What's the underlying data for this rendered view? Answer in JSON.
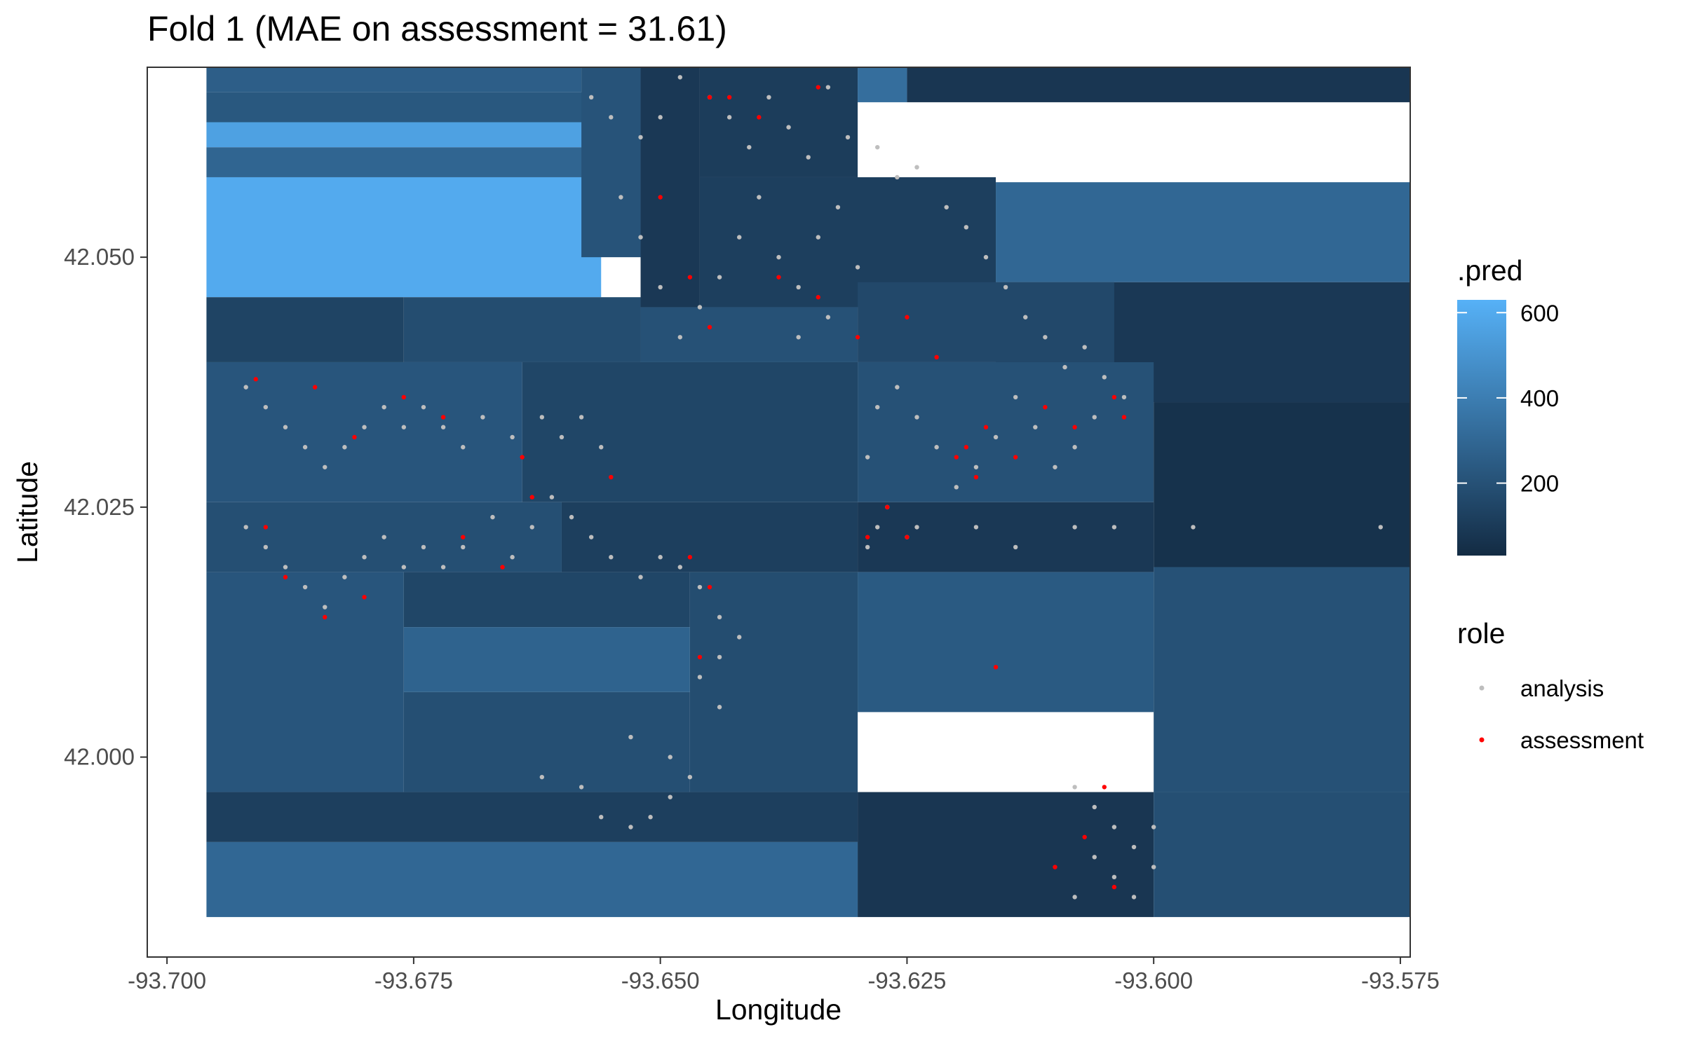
{
  "chart_data": {
    "type": "heatmap",
    "title": "Fold 1 (MAE on assessment = 31.61)",
    "xlabel": "Longitude",
    "ylabel": "Latitude",
    "xlim": [
      -93.702,
      -93.574
    ],
    "ylim": [
      41.98,
      42.069
    ],
    "x_ticks": [
      -93.7,
      -93.675,
      -93.65,
      -93.625,
      -93.6,
      -93.575
    ],
    "x_tick_labels": [
      "-93.700",
      "-93.675",
      "-93.650",
      "-93.625",
      "-93.600",
      "-93.575"
    ],
    "y_ticks": [
      42.0,
      42.025,
      42.05
    ],
    "y_tick_labels": [
      "42.000",
      "42.025",
      "42.050"
    ],
    "grid": false,
    "color_scale": {
      "title": ".pred",
      "min": 30,
      "max": 630,
      "low_color": "#132B43",
      "high_color": "#56B1F7",
      "breaks": [
        200,
        400,
        600
      ],
      "break_labels": [
        "200",
        "400",
        "600"
      ]
    },
    "legend": {
      "title": "role",
      "placement": "right",
      "entries": [
        {
          "label": "analysis",
          "color": "#bebebe"
        },
        {
          "label": "assessment",
          "color": "#ff0000"
        }
      ]
    },
    "prediction_tiles": [
      {
        "x0": -93.696,
        "x1": -93.656,
        "y0": 42.046,
        "y1": 42.058,
        "pred": 600
      },
      {
        "x0": -93.696,
        "x1": -93.656,
        "y0": 42.058,
        "y1": 42.061,
        "pred": 290
      },
      {
        "x0": -93.696,
        "x1": -93.656,
        "y0": 42.061,
        "y1": 42.0635,
        "pred": 560
      },
      {
        "x0": -93.696,
        "x1": -93.656,
        "y0": 42.0635,
        "y1": 42.0665,
        "pred": 230
      },
      {
        "x0": -93.696,
        "x1": -93.658,
        "y0": 42.0665,
        "y1": 42.0705,
        "pred": 260
      },
      {
        "x0": -93.658,
        "x1": -93.652,
        "y0": 42.05,
        "y1": 42.0705,
        "pred": 210
      },
      {
        "x0": -93.652,
        "x1": -93.646,
        "y0": 42.045,
        "y1": 42.0705,
        "pred": 90
      },
      {
        "x0": -93.646,
        "x1": -93.63,
        "y0": 42.058,
        "y1": 42.0705,
        "pred": 110
      },
      {
        "x0": -93.63,
        "x1": -93.625,
        "y0": 42.0655,
        "y1": 42.0705,
        "pred": 330
      },
      {
        "x0": -93.625,
        "x1": -93.574,
        "y0": 42.0655,
        "y1": 42.0705,
        "pred": 80
      },
      {
        "x0": -93.616,
        "x1": -93.574,
        "y0": 42.0475,
        "y1": 42.0575,
        "pred": 300
      },
      {
        "x0": -93.646,
        "x1": -93.616,
        "y0": 42.045,
        "y1": 42.058,
        "pred": 120
      },
      {
        "x0": -93.616,
        "x1": -93.574,
        "y0": 42.0355,
        "y1": 42.0475,
        "pred": 90
      },
      {
        "x0": -93.696,
        "x1": -93.676,
        "y0": 42.0395,
        "y1": 42.046,
        "pred": 140
      },
      {
        "x0": -93.676,
        "x1": -93.652,
        "y0": 42.0395,
        "y1": 42.046,
        "pred": 180
      },
      {
        "x0": -93.652,
        "x1": -93.63,
        "y0": 42.0395,
        "y1": 42.045,
        "pred": 200
      },
      {
        "x0": -93.63,
        "x1": -93.604,
        "y0": 42.0395,
        "y1": 42.0475,
        "pred": 160
      },
      {
        "x0": -93.696,
        "x1": -93.664,
        "y0": 42.0255,
        "y1": 42.0395,
        "pred": 220
      },
      {
        "x0": -93.664,
        "x1": -93.63,
        "y0": 42.0255,
        "y1": 42.0395,
        "pred": 150
      },
      {
        "x0": -93.63,
        "x1": -93.6,
        "y0": 42.0255,
        "y1": 42.0395,
        "pred": 200
      },
      {
        "x0": -93.6,
        "x1": -93.574,
        "y0": 42.019,
        "y1": 42.0355,
        "pred": 60
      },
      {
        "x0": -93.696,
        "x1": -93.66,
        "y0": 42.0185,
        "y1": 42.0255,
        "pred": 190
      },
      {
        "x0": -93.66,
        "x1": -93.63,
        "y0": 42.0185,
        "y1": 42.0255,
        "pred": 120
      },
      {
        "x0": -93.63,
        "x1": -93.6,
        "y0": 42.0185,
        "y1": 42.0255,
        "pred": 90
      },
      {
        "x0": -93.696,
        "x1": -93.676,
        "y0": 41.9965,
        "y1": 42.0185,
        "pred": 220
      },
      {
        "x0": -93.676,
        "x1": -93.647,
        "y0": 42.013,
        "y1": 42.0185,
        "pred": 150
      },
      {
        "x0": -93.676,
        "x1": -93.647,
        "y0": 42.0065,
        "y1": 42.013,
        "pred": 280
      },
      {
        "x0": -93.676,
        "x1": -93.647,
        "y0": 41.9965,
        "y1": 42.0065,
        "pred": 190
      },
      {
        "x0": -93.647,
        "x1": -93.63,
        "y0": 41.9965,
        "y1": 42.0185,
        "pred": 180
      },
      {
        "x0": -93.63,
        "x1": -93.6,
        "y0": 42.0045,
        "y1": 42.0185,
        "pred": 240
      },
      {
        "x0": -93.6,
        "x1": -93.574,
        "y0": 41.9965,
        "y1": 42.019,
        "pred": 200
      },
      {
        "x0": -93.696,
        "x1": -93.63,
        "y0": 41.9915,
        "y1": 41.9965,
        "pred": 120
      },
      {
        "x0": -93.696,
        "x1": -93.63,
        "y0": 41.984,
        "y1": 41.9915,
        "pred": 300
      },
      {
        "x0": -93.63,
        "x1": -93.6,
        "y0": 41.984,
        "y1": 41.9965,
        "pred": 80
      },
      {
        "x0": -93.6,
        "x1": -93.574,
        "y0": 41.984,
        "y1": 41.9965,
        "pred": 190
      }
    ],
    "series": [
      {
        "name": "analysis",
        "color": "#bebebe",
        "points": [
          [
            -93.657,
            42.066
          ],
          [
            -93.655,
            42.064
          ],
          [
            -93.652,
            42.062
          ],
          [
            -93.65,
            42.064
          ],
          [
            -93.648,
            42.068
          ],
          [
            -93.645,
            42.066
          ],
          [
            -93.643,
            42.064
          ],
          [
            -93.641,
            42.061
          ],
          [
            -93.639,
            42.066
          ],
          [
            -93.637,
            42.063
          ],
          [
            -93.635,
            42.06
          ],
          [
            -93.633,
            42.067
          ],
          [
            -93.631,
            42.062
          ],
          [
            -93.628,
            42.061
          ],
          [
            -93.626,
            42.058
          ],
          [
            -93.624,
            42.059
          ],
          [
            -93.621,
            42.055
          ],
          [
            -93.619,
            42.053
          ],
          [
            -93.617,
            42.05
          ],
          [
            -93.615,
            42.047
          ],
          [
            -93.613,
            42.044
          ],
          [
            -93.611,
            42.042
          ],
          [
            -93.609,
            42.039
          ],
          [
            -93.607,
            42.041
          ],
          [
            -93.605,
            42.038
          ],
          [
            -93.603,
            42.036
          ],
          [
            -93.606,
            42.034
          ],
          [
            -93.608,
            42.031
          ],
          [
            -93.61,
            42.029
          ],
          [
            -93.612,
            42.033
          ],
          [
            -93.614,
            42.036
          ],
          [
            -93.616,
            42.032
          ],
          [
            -93.618,
            42.029
          ],
          [
            -93.62,
            42.027
          ],
          [
            -93.622,
            42.031
          ],
          [
            -93.624,
            42.034
          ],
          [
            -93.626,
            42.037
          ],
          [
            -93.628,
            42.035
          ],
          [
            -93.629,
            42.03
          ],
          [
            -93.627,
            42.025
          ],
          [
            -93.625,
            42.022
          ],
          [
            -93.629,
            42.021
          ],
          [
            -93.64,
            42.056
          ],
          [
            -93.642,
            42.052
          ],
          [
            -93.644,
            42.048
          ],
          [
            -93.646,
            42.045
          ],
          [
            -93.648,
            42.042
          ],
          [
            -93.65,
            42.047
          ],
          [
            -93.652,
            42.052
          ],
          [
            -93.654,
            42.056
          ],
          [
            -93.638,
            42.05
          ],
          [
            -93.636,
            42.047
          ],
          [
            -93.634,
            42.052
          ],
          [
            -93.632,
            42.055
          ],
          [
            -93.63,
            42.049
          ],
          [
            -93.633,
            42.044
          ],
          [
            -93.636,
            42.042
          ],
          [
            -93.692,
            42.037
          ],
          [
            -93.69,
            42.035
          ],
          [
            -93.688,
            42.033
          ],
          [
            -93.686,
            42.031
          ],
          [
            -93.684,
            42.029
          ],
          [
            -93.682,
            42.031
          ],
          [
            -93.68,
            42.033
          ],
          [
            -93.678,
            42.035
          ],
          [
            -93.676,
            42.033
          ],
          [
            -93.674,
            42.035
          ],
          [
            -93.672,
            42.033
          ],
          [
            -93.67,
            42.031
          ],
          [
            -93.668,
            42.034
          ],
          [
            -93.665,
            42.032
          ],
          [
            -93.662,
            42.034
          ],
          [
            -93.66,
            42.032
          ],
          [
            -93.658,
            42.034
          ],
          [
            -93.656,
            42.031
          ],
          [
            -93.692,
            42.023
          ],
          [
            -93.69,
            42.021
          ],
          [
            -93.688,
            42.019
          ],
          [
            -93.686,
            42.017
          ],
          [
            -93.684,
            42.015
          ],
          [
            -93.682,
            42.018
          ],
          [
            -93.68,
            42.02
          ],
          [
            -93.678,
            42.022
          ],
          [
            -93.676,
            42.019
          ],
          [
            -93.674,
            42.021
          ],
          [
            -93.672,
            42.019
          ],
          [
            -93.67,
            42.021
          ],
          [
            -93.667,
            42.024
          ],
          [
            -93.665,
            42.02
          ],
          [
            -93.663,
            42.023
          ],
          [
            -93.661,
            42.026
          ],
          [
            -93.659,
            42.024
          ],
          [
            -93.657,
            42.022
          ],
          [
            -93.655,
            42.02
          ],
          [
            -93.652,
            42.018
          ],
          [
            -93.65,
            42.02
          ],
          [
            -93.648,
            42.019
          ],
          [
            -93.646,
            42.017
          ],
          [
            -93.644,
            42.014
          ],
          [
            -93.642,
            42.012
          ],
          [
            -93.644,
            42.01
          ],
          [
            -93.646,
            42.008
          ],
          [
            -93.644,
            42.005
          ],
          [
            -93.653,
            42.002
          ],
          [
            -93.649,
            42.0
          ],
          [
            -93.647,
            41.998
          ],
          [
            -93.649,
            41.996
          ],
          [
            -93.651,
            41.994
          ],
          [
            -93.653,
            41.993
          ],
          [
            -93.656,
            41.994
          ],
          [
            -93.658,
            41.997
          ],
          [
            -93.662,
            41.998
          ],
          [
            -93.608,
            41.997
          ],
          [
            -93.606,
            41.995
          ],
          [
            -93.604,
            41.993
          ],
          [
            -93.602,
            41.991
          ],
          [
            -93.6,
            41.993
          ],
          [
            -93.606,
            41.99
          ],
          [
            -93.604,
            41.988
          ],
          [
            -93.608,
            41.986
          ],
          [
            -93.602,
            41.986
          ],
          [
            -93.6,
            41.989
          ],
          [
            -93.596,
            42.023
          ],
          [
            -93.577,
            42.023
          ],
          [
            -93.608,
            42.023
          ],
          [
            -93.604,
            42.023
          ],
          [
            -93.614,
            42.021
          ],
          [
            -93.618,
            42.023
          ],
          [
            -93.624,
            42.023
          ],
          [
            -93.628,
            42.023
          ]
        ]
      },
      {
        "name": "assessment",
        "color": "#ff0000",
        "points": [
          [
            -93.691,
            42.0378
          ],
          [
            -93.685,
            42.037
          ],
          [
            -93.681,
            42.032
          ],
          [
            -93.676,
            42.036
          ],
          [
            -93.672,
            42.034
          ],
          [
            -93.664,
            42.03
          ],
          [
            -93.69,
            42.023
          ],
          [
            -93.688,
            42.018
          ],
          [
            -93.684,
            42.014
          ],
          [
            -93.68,
            42.016
          ],
          [
            -93.67,
            42.022
          ],
          [
            -93.666,
            42.019
          ],
          [
            -93.663,
            42.026
          ],
          [
            -93.655,
            42.028
          ],
          [
            -93.645,
            42.066
          ],
          [
            -93.643,
            42.066
          ],
          [
            -93.64,
            42.064
          ],
          [
            -93.634,
            42.067
          ],
          [
            -93.65,
            42.056
          ],
          [
            -93.647,
            42.048
          ],
          [
            -93.645,
            42.043
          ],
          [
            -93.638,
            42.048
          ],
          [
            -93.634,
            42.046
          ],
          [
            -93.63,
            42.042
          ],
          [
            -93.625,
            42.044
          ],
          [
            -93.622,
            42.04
          ],
          [
            -93.62,
            42.03
          ],
          [
            -93.618,
            42.028
          ],
          [
            -93.614,
            42.03
          ],
          [
            -93.611,
            42.035
          ],
          [
            -93.608,
            42.033
          ],
          [
            -93.604,
            42.036
          ],
          [
            -93.603,
            42.034
          ],
          [
            -93.627,
            42.025
          ],
          [
            -93.625,
            42.022
          ],
          [
            -93.629,
            42.022
          ],
          [
            -93.647,
            42.02
          ],
          [
            -93.645,
            42.017
          ],
          [
            -93.646,
            42.01
          ],
          [
            -93.616,
            42.009
          ],
          [
            -93.61,
            41.989
          ],
          [
            -93.607,
            41.992
          ],
          [
            -93.605,
            41.997
          ],
          [
            -93.604,
            41.987
          ],
          [
            -93.619,
            42.031
          ],
          [
            -93.617,
            42.033
          ]
        ]
      }
    ]
  }
}
